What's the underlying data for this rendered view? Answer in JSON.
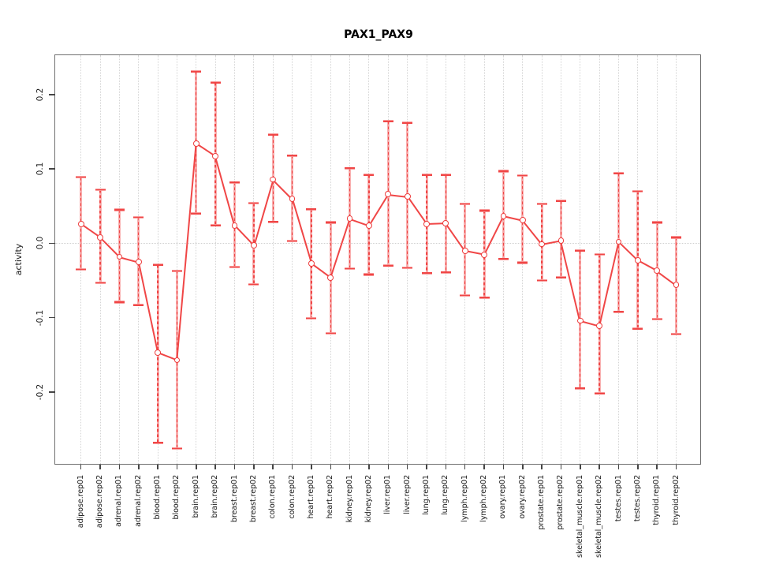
{
  "chart_data": {
    "type": "line",
    "subtype": "error-bar-point-plot",
    "title": "PAX1_PAX9",
    "ylabel": "activity",
    "xlabel": "",
    "legend": "none",
    "grid": "vertical dotted gridline per category; dotted horizontal line at y=0",
    "ylim": [
      -0.296,
      0.253
    ],
    "yticks": [
      0.2,
      0.1,
      0.0,
      -0.1,
      -0.2
    ],
    "ytick_labels": [
      "0.2",
      "0.1",
      "0.0",
      "-0.1",
      "-0.2"
    ],
    "categories": [
      "adipose.rep01",
      "adipose.rep02",
      "adrenal.rep01",
      "adrenal.rep02",
      "blood.rep01",
      "blood.rep02",
      "brain.rep01",
      "brain.rep02",
      "breast.rep01",
      "breast.rep02",
      "colon.rep01",
      "colon.rep02",
      "heart.rep01",
      "heart.rep02",
      "kidney.rep01",
      "kidney.rep02",
      "liver.rep01",
      "liver.rep02",
      "lung.rep01",
      "lung.rep02",
      "lymph.rep01",
      "lymph.rep02",
      "ovary.rep01",
      "ovary.rep02",
      "prostate.rep01",
      "prostate.rep02",
      "skeletal_muscle.rep01",
      "skeletal_muscle.rep02",
      "testes.rep01",
      "testes.rep02",
      "thyroid.rep01",
      "thyroid.rep02"
    ],
    "series": [
      {
        "name": "activity",
        "values": [
          0.026,
          0.008,
          -0.018,
          -0.025,
          -0.147,
          -0.157,
          0.134,
          0.117,
          0.024,
          -0.003,
          0.086,
          0.06,
          -0.027,
          -0.046,
          0.033,
          0.024,
          0.066,
          0.063,
          0.026,
          0.027,
          -0.01,
          -0.015,
          0.037,
          0.031,
          -0.001,
          0.004,
          -0.104,
          -0.111,
          0.002,
          -0.023,
          -0.037,
          -0.056
        ],
        "error_high": [
          0.089,
          0.072,
          0.045,
          0.035,
          -0.029,
          -0.037,
          0.231,
          0.216,
          0.082,
          0.054,
          0.146,
          0.118,
          0.046,
          0.028,
          0.101,
          0.092,
          0.164,
          0.162,
          0.092,
          0.092,
          0.053,
          0.044,
          0.097,
          0.091,
          0.053,
          0.057,
          -0.01,
          -0.015,
          0.094,
          0.07,
          0.028,
          0.008
        ],
        "error_low": [
          -0.035,
          -0.053,
          -0.079,
          -0.083,
          -0.268,
          -0.276,
          0.04,
          0.024,
          -0.032,
          -0.055,
          0.029,
          0.003,
          -0.101,
          -0.121,
          -0.034,
          -0.042,
          -0.03,
          -0.033,
          -0.04,
          -0.039,
          -0.07,
          -0.073,
          -0.021,
          -0.026,
          -0.05,
          -0.046,
          -0.195,
          -0.202,
          -0.092,
          -0.115,
          -0.102,
          -0.122
        ]
      }
    ],
    "colors": {
      "line_red": "#f04646",
      "whisker_pink": "#f79090",
      "point_stroke": "#ee3f3f",
      "gridline": "#d5d5d5",
      "zero_line": "#d0d0d0",
      "box_border": "#707070",
      "tick": "#454545",
      "label_text": "#1a1a1a",
      "title_text": "#000000",
      "background": "#ffffff"
    }
  }
}
